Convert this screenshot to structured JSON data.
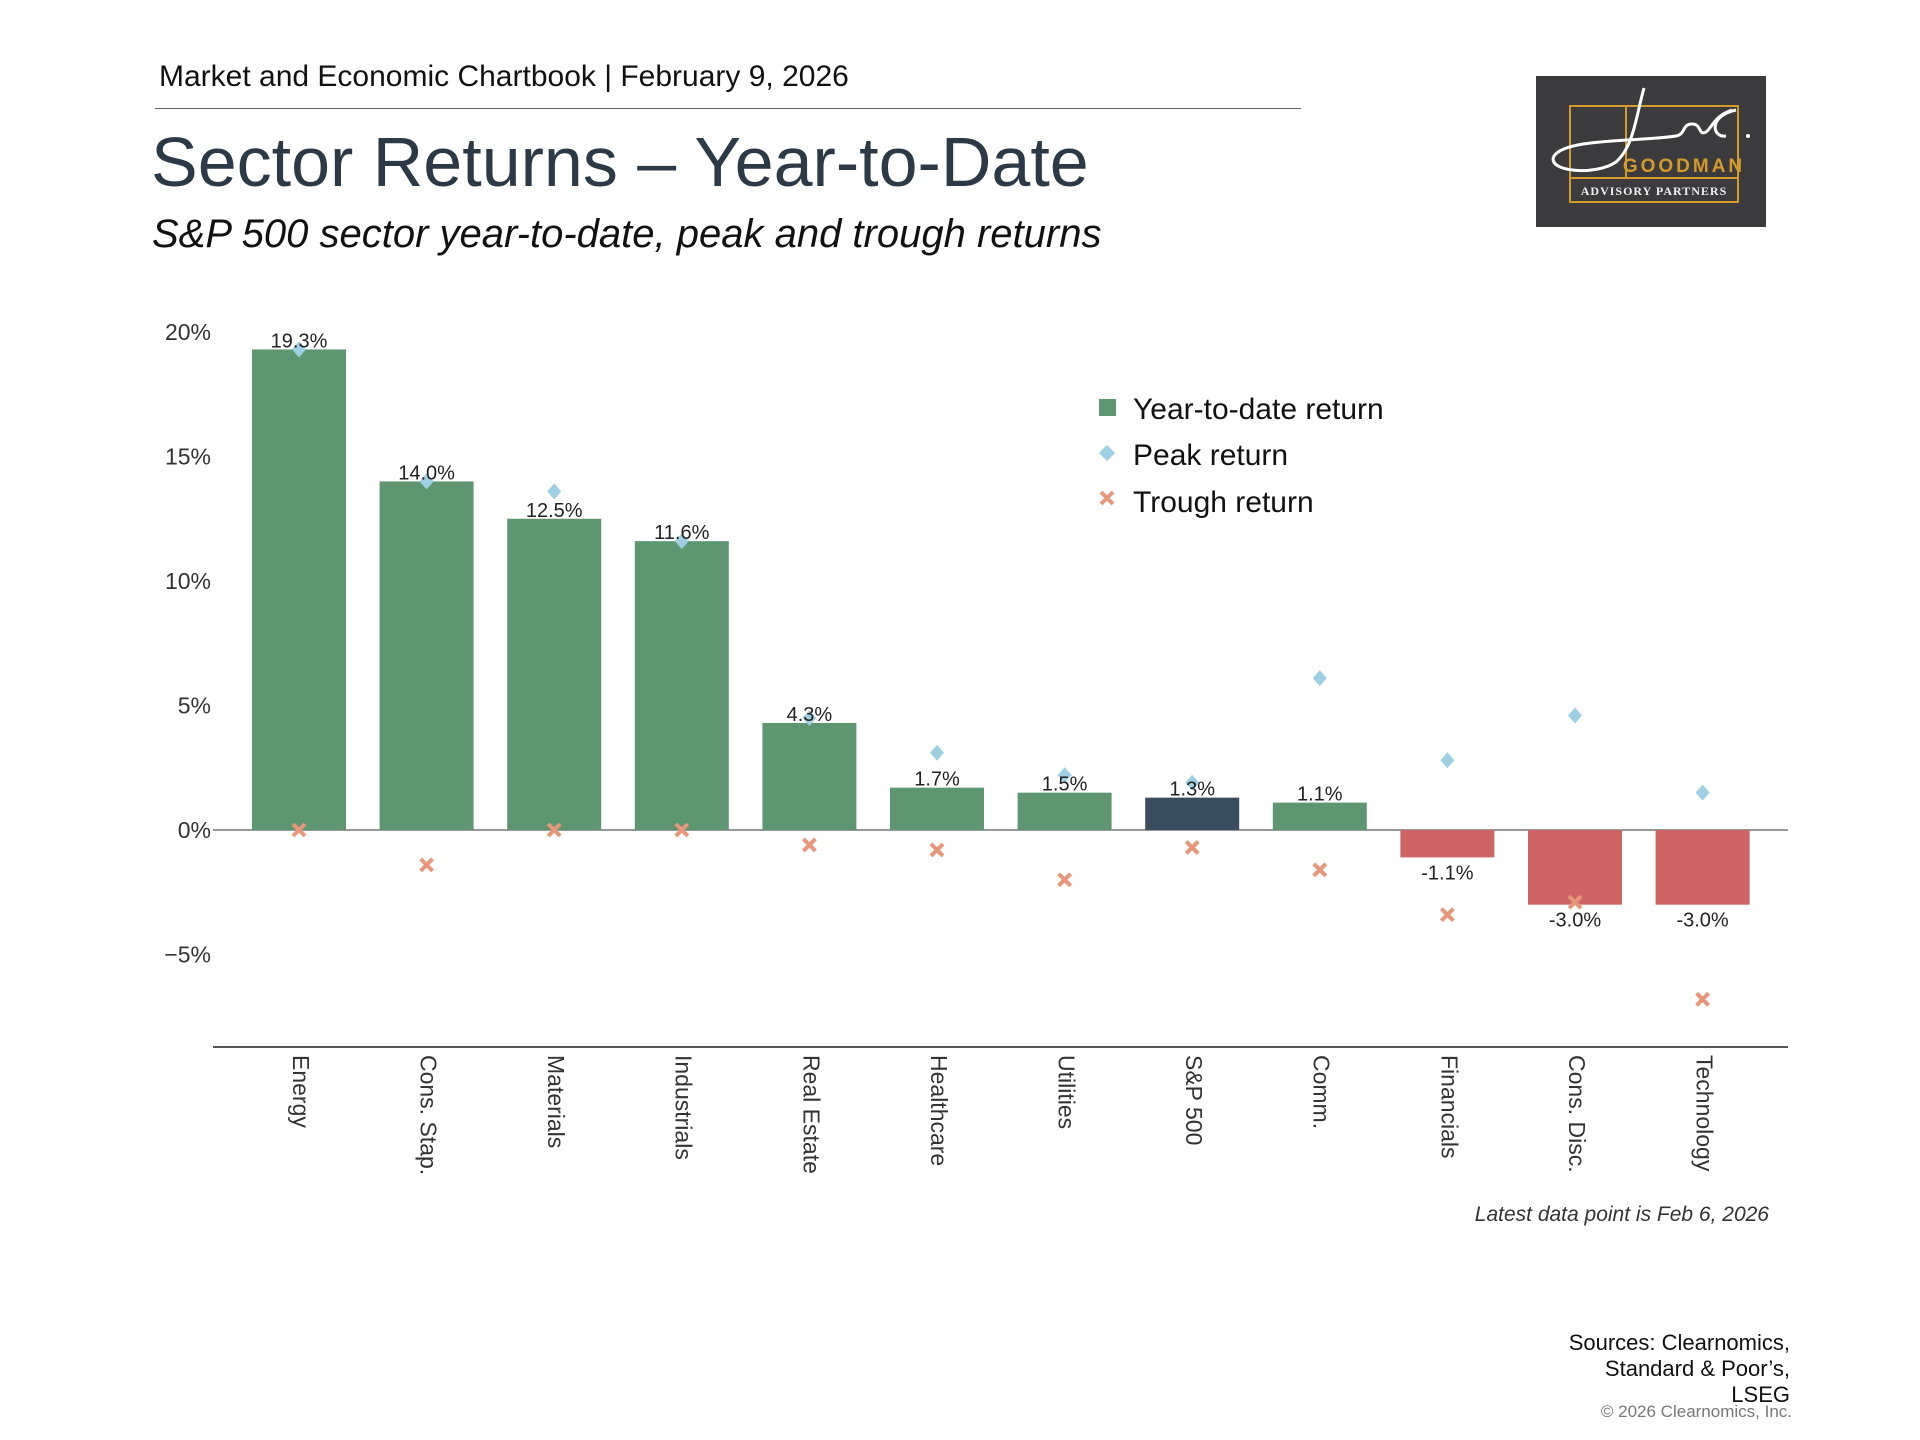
{
  "header": {
    "chartbook": "Market and Economic Chartbook | February 9, 2026"
  },
  "title": "Sector Returns – Year-to-Date",
  "subtitle": "S&P 500 sector year-to-date, peak and trough returns",
  "logo": {
    "script": "Jon C.",
    "name": "GOODMAN",
    "tagline": "ADVISORY PARTNERS"
  },
  "footnote": "Latest data point is Feb 6, 2026",
  "sources": [
    "Sources: Clearnomics,",
    "Standard & Poor’s,",
    "LSEG"
  ],
  "copyright": "© 2026 Clearnomics, Inc.",
  "colors": {
    "positive": "#5f9672",
    "negative": "#cf6464",
    "benchmark": "#3a4d5e",
    "peak": "#9fcfe3",
    "trough": "#e8967a",
    "title": "#2c3a47"
  },
  "chart_data": {
    "type": "bar",
    "title": "Sector Returns – Year-to-Date",
    "xlabel": "",
    "ylabel": "",
    "ylim": [
      -8.7,
      20.5
    ],
    "yticks": [
      -5,
      0,
      5,
      10,
      15,
      20
    ],
    "ytick_labels": [
      "−5%",
      "0%",
      "5%",
      "10%",
      "15%",
      "20%"
    ],
    "legend": {
      "placement": "top-right",
      "entries": [
        "Year-to-date return",
        "Peak return",
        "Trough return"
      ]
    },
    "categories": [
      "Energy",
      "Cons. Stap.",
      "Materials",
      "Industrials",
      "Real Estate",
      "Healthcare",
      "Utilities",
      "S&P 500",
      "Comm.",
      "Financials",
      "Cons. Disc.",
      "Technology"
    ],
    "series": [
      {
        "name": "Year-to-date return",
        "type": "bar",
        "values": [
          19.3,
          14.0,
          12.5,
          11.6,
          4.3,
          1.7,
          1.5,
          1.3,
          1.1,
          -1.1,
          -3.0,
          -3.0
        ],
        "labels": [
          "19.3%",
          "14.0%",
          "12.5%",
          "11.6%",
          "4.3%",
          "1.7%",
          "1.5%",
          "1.3%",
          "1.1%",
          "-1.1%",
          "-3.0%",
          "-3.0%"
        ]
      },
      {
        "name": "Peak return",
        "type": "scatter",
        "marker": "diamond",
        "values": [
          19.3,
          14.0,
          13.6,
          11.6,
          4.5,
          3.1,
          2.2,
          1.9,
          6.1,
          2.8,
          4.6,
          1.5
        ]
      },
      {
        "name": "Trough return",
        "type": "scatter",
        "marker": "x",
        "values": [
          0.0,
          -1.4,
          0.0,
          0.0,
          -0.6,
          -0.8,
          -2.0,
          -0.7,
          -1.6,
          -3.4,
          -2.9,
          -6.8
        ]
      }
    ],
    "benchmark_category": "S&P 500"
  }
}
